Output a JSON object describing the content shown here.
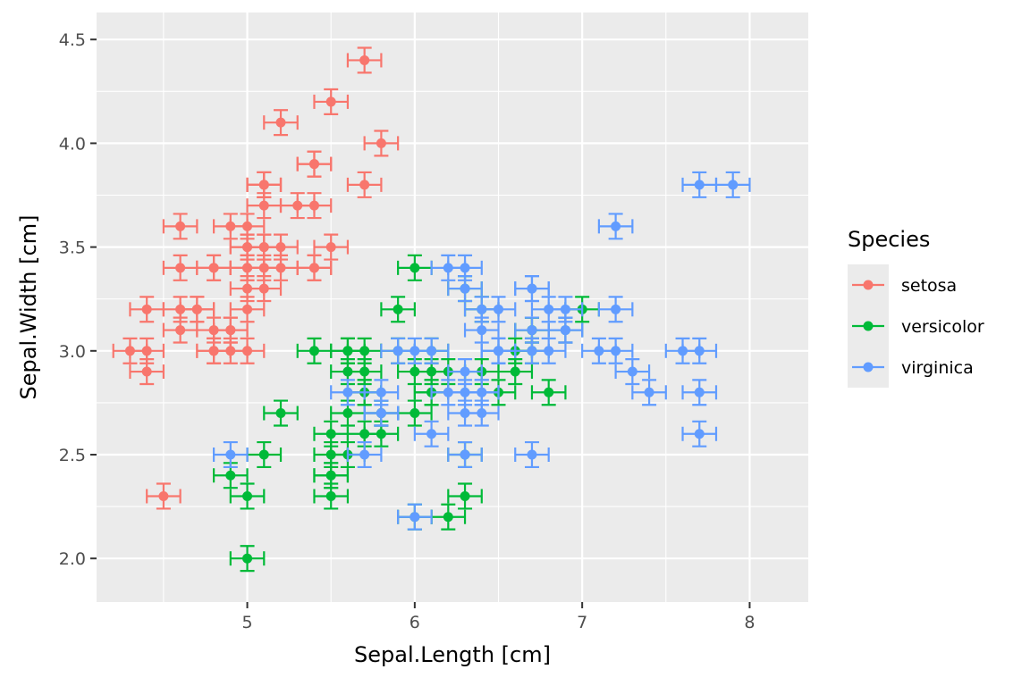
{
  "chart_data": {
    "type": "scatter",
    "title": "",
    "xlabel": "Sepal.Length [cm]",
    "ylabel": "Sepal.Width [cm]",
    "xlim": [
      4.1,
      8.35
    ],
    "ylim": [
      1.79,
      4.63
    ],
    "x_ticks": [
      5,
      6,
      7,
      8
    ],
    "x_tick_labels": [
      "5",
      "6",
      "7",
      "8"
    ],
    "y_ticks": [
      2.0,
      2.5,
      3.0,
      3.5,
      4.0,
      4.5
    ],
    "y_tick_labels": [
      "2.0",
      "2.5",
      "3.0",
      "3.5",
      "4.0",
      "4.5"
    ],
    "grid": true,
    "error_bars": {
      "x_halfwidth": 0.1,
      "y_halfwidth": 0.06
    },
    "legend": {
      "title": "Species",
      "position": "right"
    },
    "series": [
      {
        "name": "setosa",
        "color": "#F8766D",
        "points": [
          [
            5.1,
            3.5
          ],
          [
            4.9,
            3.0
          ],
          [
            4.7,
            3.2
          ],
          [
            4.6,
            3.1
          ],
          [
            5.0,
            3.6
          ],
          [
            5.4,
            3.9
          ],
          [
            4.6,
            3.4
          ],
          [
            5.0,
            3.4
          ],
          [
            4.4,
            2.9
          ],
          [
            4.9,
            3.1
          ],
          [
            5.4,
            3.7
          ],
          [
            4.8,
            3.4
          ],
          [
            4.8,
            3.0
          ],
          [
            4.3,
            3.0
          ],
          [
            5.8,
            4.0
          ],
          [
            5.7,
            4.4
          ],
          [
            5.4,
            3.9
          ],
          [
            5.1,
            3.5
          ],
          [
            5.7,
            3.8
          ],
          [
            5.1,
            3.8
          ],
          [
            5.4,
            3.4
          ],
          [
            5.1,
            3.7
          ],
          [
            4.6,
            3.6
          ],
          [
            5.1,
            3.3
          ],
          [
            4.8,
            3.4
          ],
          [
            5.0,
            3.0
          ],
          [
            5.0,
            3.4
          ],
          [
            5.2,
            3.5
          ],
          [
            5.2,
            3.4
          ],
          [
            4.7,
            3.2
          ],
          [
            4.8,
            3.1
          ],
          [
            5.4,
            3.4
          ],
          [
            5.2,
            4.1
          ],
          [
            5.5,
            4.2
          ],
          [
            4.9,
            3.1
          ],
          [
            5.0,
            3.2
          ],
          [
            5.5,
            3.5
          ],
          [
            4.9,
            3.6
          ],
          [
            4.4,
            3.0
          ],
          [
            5.1,
            3.4
          ],
          [
            5.0,
            3.5
          ],
          [
            4.5,
            2.3
          ],
          [
            4.4,
            3.2
          ],
          [
            5.0,
            3.5
          ],
          [
            5.1,
            3.8
          ],
          [
            4.8,
            3.0
          ],
          [
            5.1,
            3.8
          ],
          [
            4.6,
            3.2
          ],
          [
            5.3,
            3.7
          ],
          [
            5.0,
            3.3
          ]
        ]
      },
      {
        "name": "versicolor",
        "color": "#00BA38",
        "points": [
          [
            7.0,
            3.2
          ],
          [
            6.4,
            3.2
          ],
          [
            6.9,
            3.1
          ],
          [
            5.5,
            2.3
          ],
          [
            6.5,
            2.8
          ],
          [
            5.7,
            2.8
          ],
          [
            6.3,
            3.3
          ],
          [
            4.9,
            2.4
          ],
          [
            6.6,
            2.9
          ],
          [
            5.2,
            2.7
          ],
          [
            5.0,
            2.0
          ],
          [
            5.9,
            3.0
          ],
          [
            6.0,
            2.2
          ],
          [
            6.1,
            2.9
          ],
          [
            5.6,
            2.9
          ],
          [
            6.7,
            3.1
          ],
          [
            5.6,
            3.0
          ],
          [
            5.8,
            2.7
          ],
          [
            6.2,
            2.2
          ],
          [
            5.6,
            2.5
          ],
          [
            5.9,
            3.2
          ],
          [
            6.1,
            2.8
          ],
          [
            6.3,
            2.5
          ],
          [
            6.1,
            2.8
          ],
          [
            6.4,
            2.9
          ],
          [
            6.6,
            3.0
          ],
          [
            6.8,
            2.8
          ],
          [
            6.7,
            3.0
          ],
          [
            6.0,
            2.9
          ],
          [
            5.7,
            2.6
          ],
          [
            5.5,
            2.4
          ],
          [
            5.5,
            2.4
          ],
          [
            5.8,
            2.7
          ],
          [
            6.0,
            2.7
          ],
          [
            5.4,
            3.0
          ],
          [
            6.0,
            3.4
          ],
          [
            6.7,
            3.1
          ],
          [
            6.3,
            2.3
          ],
          [
            5.6,
            3.0
          ],
          [
            5.5,
            2.5
          ],
          [
            5.5,
            2.6
          ],
          [
            6.1,
            3.0
          ],
          [
            5.8,
            2.6
          ],
          [
            5.0,
            2.3
          ],
          [
            5.6,
            2.7
          ],
          [
            5.7,
            3.0
          ],
          [
            5.7,
            2.9
          ],
          [
            6.2,
            2.9
          ],
          [
            5.1,
            2.5
          ],
          [
            5.7,
            2.8
          ]
        ]
      },
      {
        "name": "virginica",
        "color": "#619CFF",
        "points": [
          [
            6.3,
            3.3
          ],
          [
            5.8,
            2.7
          ],
          [
            7.1,
            3.0
          ],
          [
            6.3,
            2.9
          ],
          [
            6.5,
            3.0
          ],
          [
            7.6,
            3.0
          ],
          [
            4.9,
            2.5
          ],
          [
            7.3,
            2.9
          ],
          [
            6.7,
            2.5
          ],
          [
            7.2,
            3.6
          ],
          [
            6.5,
            3.2
          ],
          [
            6.4,
            2.7
          ],
          [
            6.8,
            3.0
          ],
          [
            5.7,
            2.5
          ],
          [
            5.8,
            2.8
          ],
          [
            6.4,
            3.2
          ],
          [
            6.5,
            3.0
          ],
          [
            7.7,
            3.8
          ],
          [
            7.7,
            2.6
          ],
          [
            6.0,
            2.2
          ],
          [
            6.9,
            3.2
          ],
          [
            5.6,
            2.8
          ],
          [
            7.7,
            2.8
          ],
          [
            6.3,
            2.7
          ],
          [
            6.7,
            3.3
          ],
          [
            7.2,
            3.2
          ],
          [
            6.2,
            2.8
          ],
          [
            6.1,
            3.0
          ],
          [
            6.4,
            2.8
          ],
          [
            7.2,
            3.0
          ],
          [
            7.4,
            2.8
          ],
          [
            7.9,
            3.8
          ],
          [
            6.4,
            2.8
          ],
          [
            6.3,
            2.8
          ],
          [
            6.1,
            2.6
          ],
          [
            7.7,
            3.0
          ],
          [
            6.3,
            3.4
          ],
          [
            6.4,
            3.1
          ],
          [
            6.0,
            3.0
          ],
          [
            6.9,
            3.1
          ],
          [
            6.7,
            3.1
          ],
          [
            6.9,
            3.1
          ],
          [
            5.8,
            2.7
          ],
          [
            6.8,
            3.2
          ],
          [
            6.7,
            3.3
          ],
          [
            6.7,
            3.0
          ],
          [
            6.3,
            2.5
          ],
          [
            6.5,
            3.0
          ],
          [
            6.2,
            3.4
          ],
          [
            5.9,
            3.0
          ]
        ]
      }
    ]
  }
}
